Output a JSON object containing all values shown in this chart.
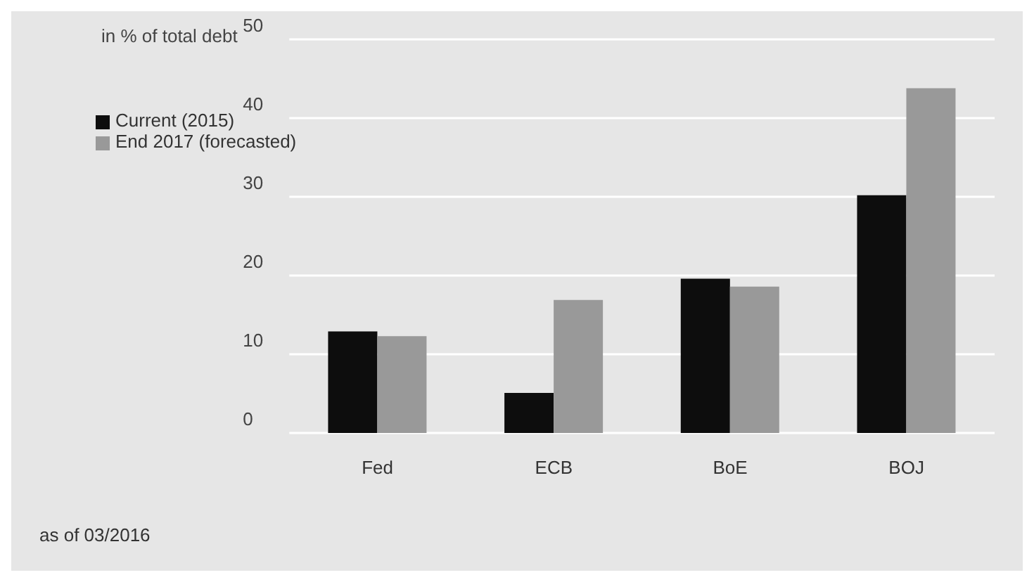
{
  "chart_data": {
    "type": "bar",
    "ylabel": "in % of total debt",
    "categories": [
      "Fed",
      "ECB",
      "BoE",
      "BOJ"
    ],
    "series": [
      {
        "name": "Current (2015)",
        "color": "#0d0d0d",
        "values": [
          12.9,
          5.1,
          19.6,
          30.2
        ]
      },
      {
        "name": "End 2017 (forecasted)",
        "color": "#999999",
        "values": [
          12.3,
          16.9,
          18.6,
          43.8
        ]
      }
    ],
    "ylim": [
      0,
      50
    ],
    "yticks": [
      0,
      10,
      20,
      30,
      40,
      50
    ],
    "grid": "y",
    "legend": "top left",
    "annotations": [
      "as of 03/2016"
    ]
  }
}
